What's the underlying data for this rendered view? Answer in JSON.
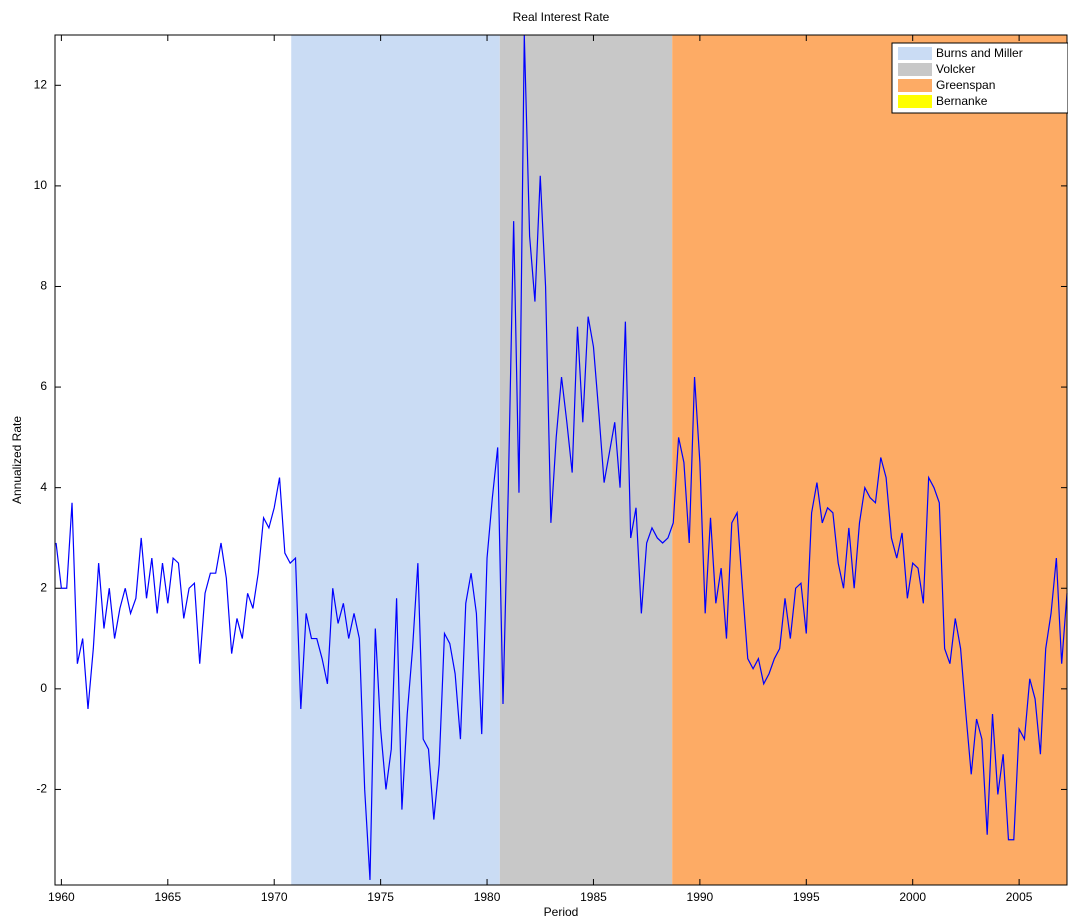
{
  "chart_data": {
    "type": "line",
    "title": "Real Interest Rate",
    "x_label": "Period",
    "y_label": "Annualized Rate",
    "xlim": [
      1959.7,
      2007.25
    ],
    "xticks": [
      1960,
      1965,
      1970,
      1975,
      1980,
      1985,
      1990,
      1995,
      2000,
      2005
    ],
    "ylim": [
      -3.9,
      13
    ],
    "yticks": [
      -2,
      0,
      2,
      4,
      6,
      8,
      10,
      12
    ],
    "legend_position": "upper right",
    "regions": [
      {
        "name": "Burns and Miller",
        "color": "#cadcf4",
        "start": 1970.8,
        "end": 1980.6
      },
      {
        "name": "Volcker",
        "color": "#c8c8c8",
        "start": 1980.6,
        "end": 1988.7
      },
      {
        "name": "Greenspan",
        "color": "#fdab65",
        "start": 1988.7,
        "end": 2007.25
      },
      {
        "name": "Bernanke",
        "color": "#ffff00",
        "start": 2007.25,
        "end": 2007.25
      }
    ],
    "x": [
      1959.75,
      1960,
      1960.25,
      1960.5,
      1960.75,
      1961,
      1961.25,
      1961.5,
      1961.75,
      1962,
      1962.25,
      1962.5,
      1962.75,
      1963,
      1963.25,
      1963.5,
      1963.75,
      1964,
      1964.25,
      1964.5,
      1964.75,
      1965,
      1965.25,
      1965.5,
      1965.75,
      1966,
      1966.25,
      1966.5,
      1966.75,
      1967,
      1967.25,
      1967.5,
      1967.75,
      1968,
      1968.25,
      1968.5,
      1968.75,
      1969,
      1969.25,
      1969.5,
      1969.75,
      1970,
      1970.25,
      1970.5,
      1970.75,
      1971,
      1971.25,
      1971.5,
      1971.75,
      1972,
      1972.25,
      1972.5,
      1972.75,
      1973,
      1973.25,
      1973.5,
      1973.75,
      1974,
      1974.25,
      1974.5,
      1974.75,
      1975,
      1975.25,
      1975.5,
      1975.75,
      1976,
      1976.25,
      1976.5,
      1976.75,
      1977,
      1977.25,
      1977.5,
      1977.75,
      1978,
      1978.25,
      1978.5,
      1978.75,
      1979,
      1979.25,
      1979.5,
      1979.75,
      1980,
      1980.25,
      1980.5,
      1980.75,
      1981,
      1981.25,
      1981.5,
      1981.75,
      1982,
      1982.25,
      1982.5,
      1982.75,
      1983,
      1983.25,
      1983.5,
      1983.75,
      1984,
      1984.25,
      1984.5,
      1984.75,
      1985,
      1985.25,
      1985.5,
      1985.75,
      1986,
      1986.25,
      1986.5,
      1986.75,
      1987,
      1987.25,
      1987.5,
      1987.75,
      1988,
      1988.25,
      1988.5,
      1988.75,
      1989,
      1989.25,
      1989.5,
      1989.75,
      1990,
      1990.25,
      1990.5,
      1990.75,
      1991,
      1991.25,
      1991.5,
      1991.75,
      1992,
      1992.25,
      1992.5,
      1992.75,
      1993,
      1993.25,
      1993.5,
      1993.75,
      1994,
      1994.25,
      1994.5,
      1994.75,
      1995,
      1995.25,
      1995.5,
      1995.75,
      1996,
      1996.25,
      1996.5,
      1996.75,
      1997,
      1997.25,
      1997.5,
      1997.75,
      1998,
      1998.25,
      1998.5,
      1998.75,
      1999,
      1999.25,
      1999.5,
      1999.75,
      2000,
      2000.25,
      2000.5,
      2000.75,
      2001,
      2001.25,
      2001.5,
      2001.75,
      2002,
      2002.25,
      2002.5,
      2002.75,
      2003,
      2003.25,
      2003.5,
      2003.75,
      2004,
      2004.25,
      2004.5,
      2004.75,
      2005,
      2005.25,
      2005.5,
      2005.75,
      2006,
      2006.25,
      2006.5,
      2006.75,
      2007,
      2007.25
    ],
    "series": [
      {
        "name": "Real Interest Rate",
        "color": "#0000ff",
        "values": [
          2.9,
          2.0,
          2.0,
          3.7,
          0.5,
          1.0,
          -0.4,
          0.8,
          2.5,
          1.2,
          2.0,
          1.0,
          1.6,
          2.0,
          1.5,
          1.8,
          3.0,
          1.8,
          2.6,
          1.5,
          2.5,
          1.7,
          2.6,
          2.5,
          1.4,
          2.0,
          2.1,
          0.5,
          1.9,
          2.3,
          2.3,
          2.9,
          2.2,
          0.7,
          1.4,
          1.0,
          1.9,
          1.6,
          2.3,
          3.4,
          3.2,
          3.6,
          4.2,
          2.7,
          2.5,
          2.6,
          -0.4,
          1.5,
          1.0,
          1.0,
          0.6,
          0.1,
          2.0,
          1.3,
          1.7,
          1.0,
          1.5,
          1.0,
          -2.0,
          -3.8,
          1.2,
          -0.8,
          -2.0,
          -1.2,
          1.8,
          -2.4,
          -0.5,
          0.8,
          2.5,
          -1.0,
          -1.2,
          -2.6,
          -1.5,
          1.1,
          0.9,
          0.3,
          -1.0,
          1.7,
          2.3,
          1.5,
          -0.9,
          2.6,
          3.8,
          4.8,
          -0.3,
          4.0,
          9.3,
          3.9,
          13.0,
          9.0,
          7.7,
          10.2,
          8.0,
          3.3,
          5.0,
          6.2,
          5.3,
          4.3,
          7.2,
          5.3,
          7.4,
          6.8,
          5.5,
          4.1,
          4.7,
          5.3,
          4.0,
          7.3,
          3.0,
          3.6,
          1.5,
          2.9,
          3.2,
          3.0,
          2.9,
          3.0,
          3.3,
          5.0,
          4.5,
          2.9,
          6.2,
          4.5,
          1.5,
          3.4,
          1.7,
          2.4,
          1.0,
          3.3,
          3.5,
          2.0,
          0.6,
          0.4,
          0.6,
          0.1,
          0.3,
          0.6,
          0.8,
          1.8,
          1.0,
          2.0,
          2.1,
          1.1,
          3.5,
          4.1,
          3.3,
          3.6,
          3.5,
          2.5,
          2.0,
          3.2,
          2.0,
          3.3,
          4.0,
          3.8,
          3.7,
          4.6,
          4.2,
          3.0,
          2.6,
          3.1,
          1.8,
          2.5,
          2.4,
          1.7,
          4.2,
          4.0,
          3.7,
          0.8,
          0.5,
          1.4,
          0.8,
          -0.5,
          -1.7,
          -0.6,
          -1.0,
          -2.9,
          -0.5,
          -2.1,
          -1.3,
          -3.0,
          -3.0,
          -0.8,
          -1.0,
          0.2,
          -0.2,
          -1.3,
          0.8,
          1.5,
          2.6,
          0.5,
          1.9
        ]
      }
    ]
  }
}
